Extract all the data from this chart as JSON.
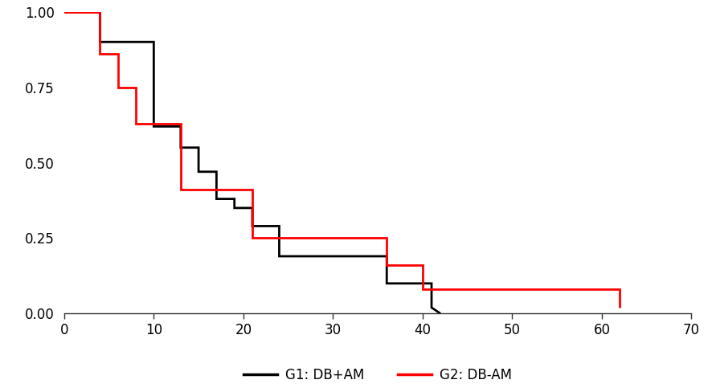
{
  "g1_x": [
    0,
    4,
    4,
    10,
    10,
    13,
    13,
    15,
    15,
    17,
    17,
    19,
    19,
    21,
    21,
    24,
    24,
    36,
    36,
    41,
    41,
    42
  ],
  "g1_y": [
    1.0,
    1.0,
    0.9,
    0.9,
    0.62,
    0.62,
    0.55,
    0.55,
    0.47,
    0.47,
    0.38,
    0.38,
    0.35,
    0.35,
    0.29,
    0.29,
    0.19,
    0.19,
    0.1,
    0.1,
    0.02,
    0.0
  ],
  "g2_x": [
    0,
    4,
    4,
    6,
    6,
    8,
    8,
    13,
    13,
    21,
    21,
    36,
    36,
    40,
    40,
    62,
    62
  ],
  "g2_y": [
    1.0,
    1.0,
    0.86,
    0.86,
    0.75,
    0.75,
    0.63,
    0.63,
    0.41,
    0.41,
    0.25,
    0.25,
    0.16,
    0.16,
    0.08,
    0.08,
    0.02
  ],
  "g1_color": "#000000",
  "g2_color": "#ff0000",
  "g1_label": "G1: DB+AM",
  "g2_label": "G2: DB-AM",
  "xlim": [
    0,
    70
  ],
  "ylim": [
    0.0,
    1.0
  ],
  "xticks": [
    0,
    10,
    20,
    30,
    40,
    50,
    60,
    70
  ],
  "yticks": [
    0.0,
    0.25,
    0.5,
    0.75,
    1.0
  ],
  "line_width": 2.0,
  "background_color": "#ffffff",
  "tick_fontsize": 12,
  "legend_fontsize": 12
}
